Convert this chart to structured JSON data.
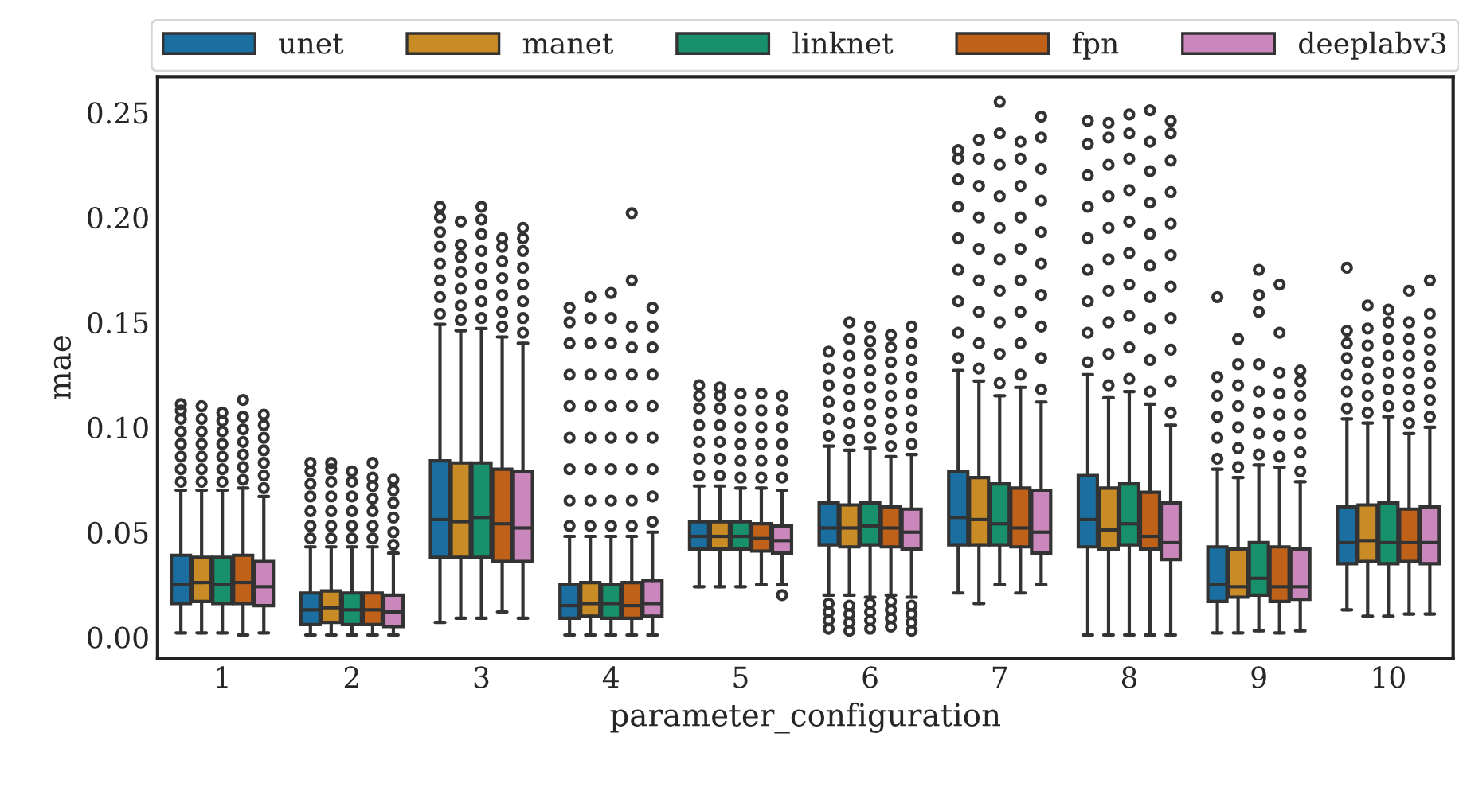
{
  "chart_data": {
    "type": "box",
    "xlabel": "parameter_configuration",
    "ylabel": "mae",
    "categories": [
      "1",
      "2",
      "3",
      "4",
      "5",
      "6",
      "7",
      "8",
      "9",
      "10"
    ],
    "ylim": [
      -0.01,
      0.267
    ],
    "yticks": [
      {
        "value": 0,
        "label": "0.00"
      },
      {
        "value": 0.05,
        "label": "0.05"
      },
      {
        "value": 0.1,
        "label": "0.10"
      },
      {
        "value": 0.15,
        "label": "0.15"
      },
      {
        "value": 0.2,
        "label": "0.20"
      },
      {
        "value": 0.25,
        "label": "0.25"
      }
    ],
    "grid": false,
    "legend": "top",
    "marker": "circle",
    "series": [
      {
        "name": "unet",
        "color": "#1a6fa0",
        "boxes": [
          {
            "low": 0.002,
            "q1": 0.016,
            "median": 0.025,
            "q3": 0.039,
            "high": 0.07,
            "outliers": [
              0.074,
              0.08,
              0.086,
              0.092,
              0.098,
              0.104,
              0.108,
              0.111
            ]
          },
          {
            "low": 0.001,
            "q1": 0.006,
            "median": 0.013,
            "q3": 0.021,
            "high": 0.043,
            "outliers": [
              0.047,
              0.053,
              0.06,
              0.067,
              0.073,
              0.079,
              0.083
            ]
          },
          {
            "low": 0.007,
            "q1": 0.038,
            "median": 0.056,
            "q3": 0.084,
            "high": 0.149,
            "outliers": [
              0.154,
              0.162,
              0.17,
              0.178,
              0.186,
              0.193,
              0.2,
              0.205
            ]
          },
          {
            "low": 0.001,
            "q1": 0.009,
            "median": 0.015,
            "q3": 0.025,
            "high": 0.048,
            "outliers": [
              0.053,
              0.065,
              0.08,
              0.095,
              0.11,
              0.125,
              0.14,
              0.15,
              0.157
            ]
          },
          {
            "low": 0.024,
            "q1": 0.042,
            "median": 0.048,
            "q3": 0.055,
            "high": 0.072,
            "outliers": [
              0.077,
              0.085,
              0.093,
              0.101,
              0.109,
              0.115,
              0.12
            ]
          },
          {
            "low": 0.02,
            "q1": 0.044,
            "median": 0.052,
            "q3": 0.064,
            "high": 0.091,
            "outliers": [
              0.004,
              0.008,
              0.012,
              0.016,
              0.096,
              0.104,
              0.112,
              0.12,
              0.128,
              0.136
            ]
          },
          {
            "low": 0.021,
            "q1": 0.044,
            "median": 0.057,
            "q3": 0.079,
            "high": 0.127,
            "outliers": [
              0.133,
              0.145,
              0.16,
              0.175,
              0.19,
              0.205,
              0.218,
              0.228,
              0.232
            ]
          },
          {
            "low": 0.001,
            "q1": 0.043,
            "median": 0.056,
            "q3": 0.077,
            "high": 0.125,
            "outliers": [
              0.131,
              0.145,
              0.16,
              0.175,
              0.19,
              0.205,
              0.22,
              0.235,
              0.246
            ]
          },
          {
            "low": 0.002,
            "q1": 0.017,
            "median": 0.025,
            "q3": 0.043,
            "high": 0.08,
            "outliers": [
              0.085,
              0.095,
              0.105,
              0.115,
              0.124,
              0.162
            ]
          },
          {
            "low": 0.013,
            "q1": 0.035,
            "median": 0.045,
            "q3": 0.062,
            "high": 0.104,
            "outliers": [
              0.109,
              0.117,
              0.125,
              0.133,
              0.14,
              0.146,
              0.176
            ]
          }
        ]
      },
      {
        "name": "manet",
        "color": "#c98b26",
        "boxes": [
          {
            "low": 0.002,
            "q1": 0.017,
            "median": 0.026,
            "q3": 0.038,
            "high": 0.07,
            "outliers": [
              0.074,
              0.08,
              0.086,
              0.092,
              0.098,
              0.104,
              0.11
            ]
          },
          {
            "low": 0.001,
            "q1": 0.007,
            "median": 0.014,
            "q3": 0.022,
            "high": 0.043,
            "outliers": [
              0.047,
              0.053,
              0.06,
              0.067,
              0.074,
              0.08,
              0.083
            ]
          },
          {
            "low": 0.009,
            "q1": 0.038,
            "median": 0.055,
            "q3": 0.083,
            "high": 0.146,
            "outliers": [
              0.151,
              0.158,
              0.166,
              0.174,
              0.181,
              0.187,
              0.198
            ]
          },
          {
            "low": 0.001,
            "q1": 0.01,
            "median": 0.016,
            "q3": 0.026,
            "high": 0.048,
            "outliers": [
              0.053,
              0.065,
              0.08,
              0.095,
              0.11,
              0.125,
              0.14,
              0.152,
              0.162
            ]
          },
          {
            "low": 0.024,
            "q1": 0.042,
            "median": 0.048,
            "q3": 0.055,
            "high": 0.072,
            "outliers": [
              0.077,
              0.085,
              0.093,
              0.101,
              0.109,
              0.115,
              0.119
            ]
          },
          {
            "low": 0.02,
            "q1": 0.043,
            "median": 0.052,
            "q3": 0.063,
            "high": 0.089,
            "outliers": [
              0.003,
              0.007,
              0.011,
              0.015,
              0.094,
              0.102,
              0.11,
              0.118,
              0.126,
              0.134,
              0.142,
              0.15
            ]
          },
          {
            "low": 0.016,
            "q1": 0.044,
            "median": 0.056,
            "q3": 0.076,
            "high": 0.122,
            "outliers": [
              0.128,
              0.14,
              0.155,
              0.17,
              0.185,
              0.2,
              0.215,
              0.228,
              0.237
            ]
          },
          {
            "low": 0.001,
            "q1": 0.042,
            "median": 0.051,
            "q3": 0.071,
            "high": 0.114,
            "outliers": [
              0.12,
              0.135,
              0.15,
              0.165,
              0.18,
              0.195,
              0.21,
              0.225,
              0.238,
              0.245
            ]
          },
          {
            "low": 0.002,
            "q1": 0.019,
            "median": 0.024,
            "q3": 0.042,
            "high": 0.076,
            "outliers": [
              0.081,
              0.09,
              0.1,
              0.11,
              0.12,
              0.13,
              0.142
            ]
          },
          {
            "low": 0.01,
            "q1": 0.036,
            "median": 0.046,
            "q3": 0.063,
            "high": 0.102,
            "outliers": [
              0.107,
              0.115,
              0.123,
              0.131,
              0.139,
              0.147,
              0.158
            ]
          }
        ]
      },
      {
        "name": "linknet",
        "color": "#17906b",
        "boxes": [
          {
            "low": 0.002,
            "q1": 0.016,
            "median": 0.025,
            "q3": 0.038,
            "high": 0.07,
            "outliers": [
              0.074,
              0.08,
              0.086,
              0.092,
              0.098,
              0.103,
              0.107
            ]
          },
          {
            "low": 0.001,
            "q1": 0.006,
            "median": 0.013,
            "q3": 0.021,
            "high": 0.043,
            "outliers": [
              0.047,
              0.053,
              0.06,
              0.067,
              0.074,
              0.079
            ]
          },
          {
            "low": 0.009,
            "q1": 0.038,
            "median": 0.057,
            "q3": 0.083,
            "high": 0.147,
            "outliers": [
              0.152,
              0.16,
              0.168,
              0.176,
              0.184,
              0.192,
              0.199,
              0.205
            ]
          },
          {
            "low": 0.001,
            "q1": 0.009,
            "median": 0.016,
            "q3": 0.025,
            "high": 0.048,
            "outliers": [
              0.053,
              0.065,
              0.08,
              0.095,
              0.11,
              0.125,
              0.14,
              0.152,
              0.164
            ]
          },
          {
            "low": 0.024,
            "q1": 0.042,
            "median": 0.048,
            "q3": 0.055,
            "high": 0.071,
            "outliers": [
              0.076,
              0.084,
              0.092,
              0.1,
              0.108,
              0.116
            ]
          },
          {
            "low": 0.019,
            "q1": 0.044,
            "median": 0.053,
            "q3": 0.064,
            "high": 0.09,
            "outliers": [
              0.004,
              0.008,
              0.012,
              0.016,
              0.095,
              0.103,
              0.111,
              0.119,
              0.127,
              0.135,
              0.141,
              0.148
            ]
          },
          {
            "low": 0.025,
            "q1": 0.044,
            "median": 0.054,
            "q3": 0.073,
            "high": 0.115,
            "outliers": [
              0.121,
              0.135,
              0.15,
              0.165,
              0.18,
              0.195,
              0.21,
              0.225,
              0.24,
              0.255
            ]
          },
          {
            "low": 0.001,
            "q1": 0.044,
            "median": 0.054,
            "q3": 0.073,
            "high": 0.117,
            "outliers": [
              0.123,
              0.138,
              0.153,
              0.168,
              0.183,
              0.198,
              0.213,
              0.228,
              0.24,
              0.249
            ]
          },
          {
            "low": 0.003,
            "q1": 0.02,
            "median": 0.028,
            "q3": 0.045,
            "high": 0.082,
            "outliers": [
              0.087,
              0.097,
              0.107,
              0.117,
              0.13,
              0.155,
              0.163,
              0.175
            ]
          },
          {
            "low": 0.01,
            "q1": 0.035,
            "median": 0.045,
            "q3": 0.064,
            "high": 0.105,
            "outliers": [
              0.11,
              0.118,
              0.126,
              0.134,
              0.142,
              0.15,
              0.156
            ]
          }
        ]
      },
      {
        "name": "fpn",
        "color": "#c0611a",
        "boxes": [
          {
            "low": 0.001,
            "q1": 0.016,
            "median": 0.026,
            "q3": 0.039,
            "high": 0.071,
            "outliers": [
              0.075,
              0.081,
              0.087,
              0.093,
              0.099,
              0.105,
              0.113
            ]
          },
          {
            "low": 0.001,
            "q1": 0.006,
            "median": 0.013,
            "q3": 0.021,
            "high": 0.043,
            "outliers": [
              0.047,
              0.053,
              0.06,
              0.066,
              0.072,
              0.076,
              0.083
            ]
          },
          {
            "low": 0.012,
            "q1": 0.036,
            "median": 0.054,
            "q3": 0.08,
            "high": 0.143,
            "outliers": [
              0.148,
              0.155,
              0.163,
              0.171,
              0.179,
              0.186,
              0.19
            ]
          },
          {
            "low": 0.001,
            "q1": 0.009,
            "median": 0.015,
            "q3": 0.026,
            "high": 0.048,
            "outliers": [
              0.053,
              0.065,
              0.08,
              0.095,
              0.11,
              0.125,
              0.138,
              0.148,
              0.17,
              0.202
            ]
          },
          {
            "low": 0.025,
            "q1": 0.041,
            "median": 0.047,
            "q3": 0.054,
            "high": 0.071,
            "outliers": [
              0.076,
              0.084,
              0.092,
              0.1,
              0.108,
              0.116
            ]
          },
          {
            "low": 0.02,
            "q1": 0.043,
            "median": 0.052,
            "q3": 0.062,
            "high": 0.086,
            "outliers": [
              0.005,
              0.009,
              0.013,
              0.017,
              0.091,
              0.099,
              0.107,
              0.115,
              0.123,
              0.131,
              0.138,
              0.144
            ]
          },
          {
            "low": 0.021,
            "q1": 0.043,
            "median": 0.052,
            "q3": 0.071,
            "high": 0.119,
            "outliers": [
              0.125,
              0.14,
              0.155,
              0.17,
              0.185,
              0.2,
              0.215,
              0.228,
              0.236
            ]
          },
          {
            "low": 0.001,
            "q1": 0.042,
            "median": 0.048,
            "q3": 0.069,
            "high": 0.111,
            "outliers": [
              0.117,
              0.132,
              0.147,
              0.162,
              0.177,
              0.192,
              0.207,
              0.222,
              0.236,
              0.251
            ]
          },
          {
            "low": 0.002,
            "q1": 0.017,
            "median": 0.024,
            "q3": 0.043,
            "high": 0.081,
            "outliers": [
              0.086,
              0.096,
              0.106,
              0.116,
              0.126,
              0.145,
              0.168
            ]
          },
          {
            "low": 0.011,
            "q1": 0.036,
            "median": 0.045,
            "q3": 0.061,
            "high": 0.097,
            "outliers": [
              0.102,
              0.11,
              0.118,
              0.126,
              0.134,
              0.142,
              0.15,
              0.165
            ]
          }
        ]
      },
      {
        "name": "deeplabv3",
        "color": "#c987bb",
        "boxes": [
          {
            "low": 0.002,
            "q1": 0.015,
            "median": 0.024,
            "q3": 0.036,
            "high": 0.067,
            "outliers": [
              0.071,
              0.077,
              0.083,
              0.089,
              0.095,
              0.101,
              0.106
            ]
          },
          {
            "low": 0.001,
            "q1": 0.005,
            "median": 0.012,
            "q3": 0.02,
            "high": 0.04,
            "outliers": [
              0.044,
              0.05,
              0.057,
              0.064,
              0.07,
              0.075
            ]
          },
          {
            "low": 0.009,
            "q1": 0.036,
            "median": 0.052,
            "q3": 0.079,
            "high": 0.14,
            "outliers": [
              0.145,
              0.152,
              0.16,
              0.168,
              0.176,
              0.184,
              0.19,
              0.195
            ]
          },
          {
            "low": 0.001,
            "q1": 0.01,
            "median": 0.016,
            "q3": 0.027,
            "high": 0.05,
            "outliers": [
              0.055,
              0.067,
              0.08,
              0.095,
              0.11,
              0.125,
              0.138,
              0.148,
              0.157
            ]
          },
          {
            "low": 0.025,
            "q1": 0.04,
            "median": 0.046,
            "q3": 0.053,
            "high": 0.07,
            "outliers": [
              0.02,
              0.076,
              0.084,
              0.092,
              0.1,
              0.108,
              0.115
            ]
          },
          {
            "low": 0.019,
            "q1": 0.042,
            "median": 0.05,
            "q3": 0.061,
            "high": 0.087,
            "outliers": [
              0.003,
              0.007,
              0.011,
              0.015,
              0.092,
              0.1,
              0.108,
              0.116,
              0.124,
              0.132,
              0.14,
              0.148
            ]
          },
          {
            "low": 0.025,
            "q1": 0.04,
            "median": 0.05,
            "q3": 0.07,
            "high": 0.112,
            "outliers": [
              0.118,
              0.133,
              0.148,
              0.163,
              0.178,
              0.193,
              0.208,
              0.223,
              0.238,
              0.248
            ]
          },
          {
            "low": 0.001,
            "q1": 0.037,
            "median": 0.045,
            "q3": 0.064,
            "high": 0.101,
            "outliers": [
              0.107,
              0.122,
              0.137,
              0.152,
              0.167,
              0.182,
              0.197,
              0.212,
              0.227,
              0.24,
              0.246
            ]
          },
          {
            "low": 0.003,
            "q1": 0.018,
            "median": 0.024,
            "q3": 0.042,
            "high": 0.074,
            "outliers": [
              0.079,
              0.088,
              0.097,
              0.106,
              0.115,
              0.122,
              0.127
            ]
          },
          {
            "low": 0.011,
            "q1": 0.035,
            "median": 0.045,
            "q3": 0.062,
            "high": 0.1,
            "outliers": [
              0.105,
              0.113,
              0.121,
              0.129,
              0.137,
              0.145,
              0.154,
              0.17
            ]
          }
        ]
      }
    ]
  }
}
